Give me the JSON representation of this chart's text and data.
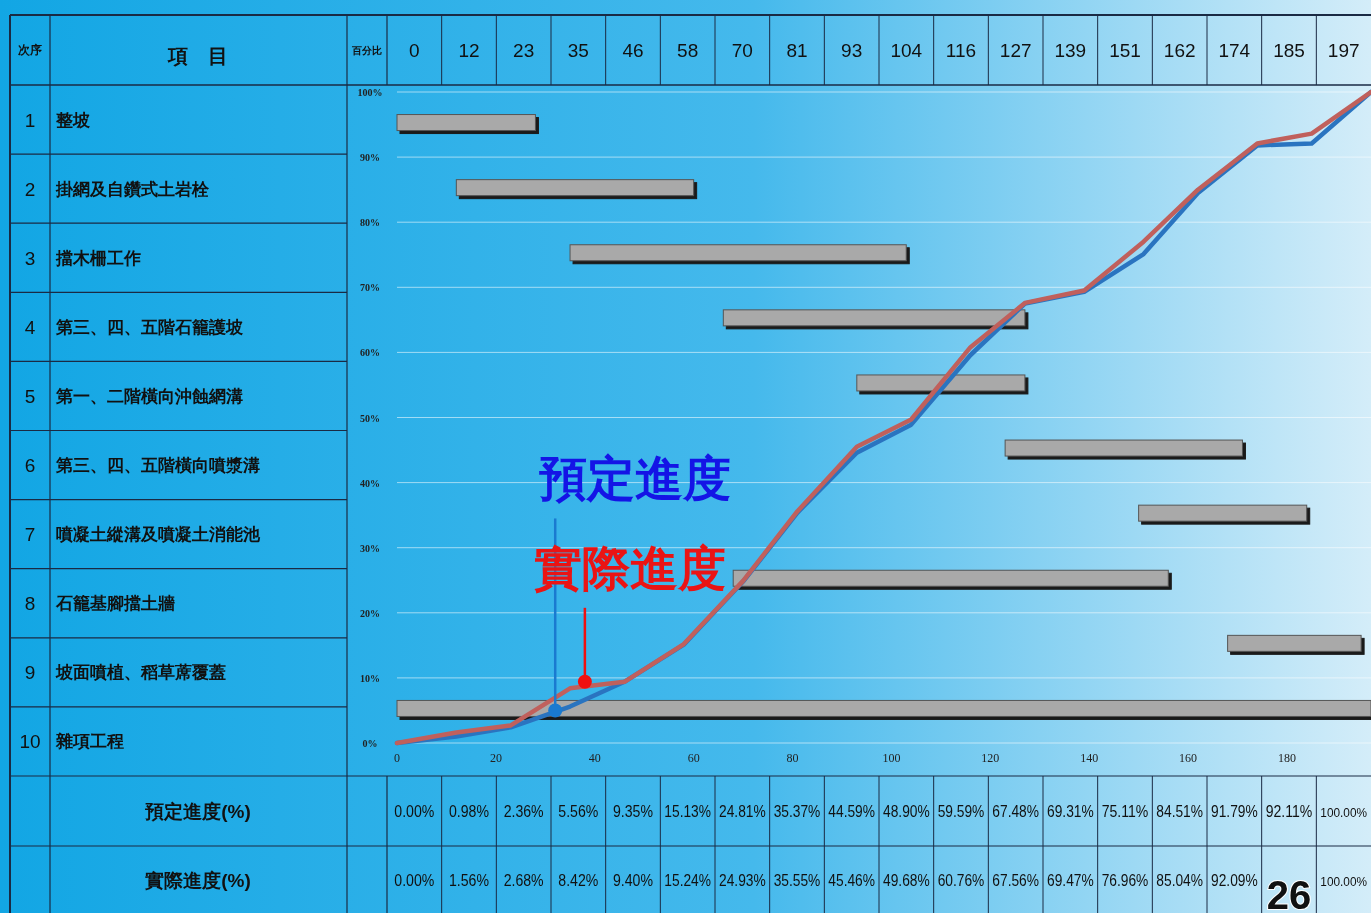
{
  "chart_data": [
    {
      "type": "bar",
      "orientation": "horizontal",
      "categories": [
        "整坡",
        "掛網及自鑽式土岩栓",
        "擋木柵工作",
        "第三、四、五階石籠護坡",
        "第一、二階橫向沖蝕網溝",
        "第三、四、五階橫向噴漿溝",
        "噴凝土縱溝及噴凝土消能池",
        "石籠基腳擋土牆",
        "坡面噴植、稻草蓆覆蓋",
        "雜項工程"
      ],
      "base": [
        0,
        12,
        35,
        66,
        93,
        123,
        150,
        68,
        168,
        0
      ],
      "values": [
        28,
        48,
        68,
        61,
        34,
        48,
        34,
        88,
        27,
        197
      ],
      "color": "#a9a9a9",
      "xlim": [
        0,
        197
      ],
      "xticks": [
        0,
        20,
        40,
        60,
        80,
        100,
        120,
        140,
        160,
        180
      ],
      "annotations": [
        "次序",
        "項　目",
        "百分比",
        "1",
        "2",
        "3",
        "4",
        "5",
        "6",
        "7",
        "8",
        "9",
        "10"
      ]
    },
    {
      "type": "line",
      "x": [
        0,
        12,
        23,
        35,
        46,
        58,
        70,
        81,
        93,
        104,
        116,
        127,
        139,
        151,
        162,
        174,
        185,
        197
      ],
      "series": [
        {
          "color": "#2a74c0",
          "values": [
            0,
            1,
            2.4,
            5.6,
            9.4,
            15.1,
            24.8,
            35.4,
            44.6,
            48.9,
            59.6,
            67.5,
            69.3,
            75.1,
            84.5,
            91.8,
            92.1,
            100
          ]
        },
        {
          "color": "#c0605c",
          "values": [
            0,
            1.6,
            2.7,
            8.4,
            9.4,
            15.2,
            24.9,
            35.6,
            45.5,
            49.7,
            60.8,
            67.6,
            69.5,
            77,
            85,
            92.1,
            93.6,
            100
          ]
        }
      ],
      "xlim": [
        0,
        197
      ],
      "ylim": [
        0,
        100
      ],
      "yticks": [
        {
          "value": 0,
          "label": "0%"
        },
        {
          "value": 10,
          "label": "10%"
        },
        {
          "value": 20,
          "label": "20%"
        },
        {
          "value": 30,
          "label": "30%"
        },
        {
          "value": 40,
          "label": "40%"
        },
        {
          "value": 50,
          "label": "50%"
        },
        {
          "value": 60,
          "label": "60%"
        },
        {
          "value": 70,
          "label": "70%"
        },
        {
          "value": 80,
          "label": "80%"
        },
        {
          "value": 90,
          "label": "90%"
        },
        {
          "value": 100,
          "label": "100%"
        }
      ],
      "grid": "y",
      "marker": "none",
      "line_style": "solid",
      "annotations": [
        {
          "text": "預定進度",
          "x": 32,
          "y": 5
        },
        {
          "text": "實際進度",
          "x": 38,
          "y": 9.4
        },
        "26"
      ]
    },
    {
      "type": "other",
      "categories": [
        "0",
        "12",
        "23",
        "35",
        "46",
        "58",
        "70",
        "81",
        "93",
        "104",
        "116",
        "127",
        "139",
        "151",
        "162",
        "174",
        "185",
        "197"
      ],
      "series": [
        {
          "name": "預定進度(%)",
          "values": [
            0.0,
            0.98,
            2.36,
            5.56,
            9.35,
            15.13,
            24.81,
            35.37,
            44.59,
            48.9,
            59.59,
            67.48,
            69.31,
            75.11,
            84.51,
            91.79,
            92.11,
            100.0
          ],
          "value_labels": [
            "0.00%",
            "0.98%",
            "2.36%",
            "5.56%",
            "9.35%",
            "15.13%",
            "24.81%",
            "35.37%",
            "44.59%",
            "48.90%",
            "59.59%",
            "67.48%",
            "69.31%",
            "75.11%",
            "84.51%",
            "91.79%",
            "92.11%",
            "100.00%"
          ]
        },
        {
          "name": "實際進度(%)",
          "values": [
            0.0,
            1.56,
            2.68,
            8.42,
            9.4,
            15.24,
            24.93,
            35.55,
            45.46,
            49.68,
            60.76,
            67.56,
            69.47,
            76.96,
            85.04,
            92.09,
            null,
            100.0
          ],
          "value_labels": [
            "0.00%",
            "1.56%",
            "2.68%",
            "8.42%",
            "9.40%",
            "15.24%",
            "24.93%",
            "35.55%",
            "45.46%",
            "49.68%",
            "60.76%",
            "67.56%",
            "69.47%",
            "76.96%",
            "85.04%",
            "92.09%",
            null,
            "100.00%"
          ]
        }
      ]
    }
  ]
}
